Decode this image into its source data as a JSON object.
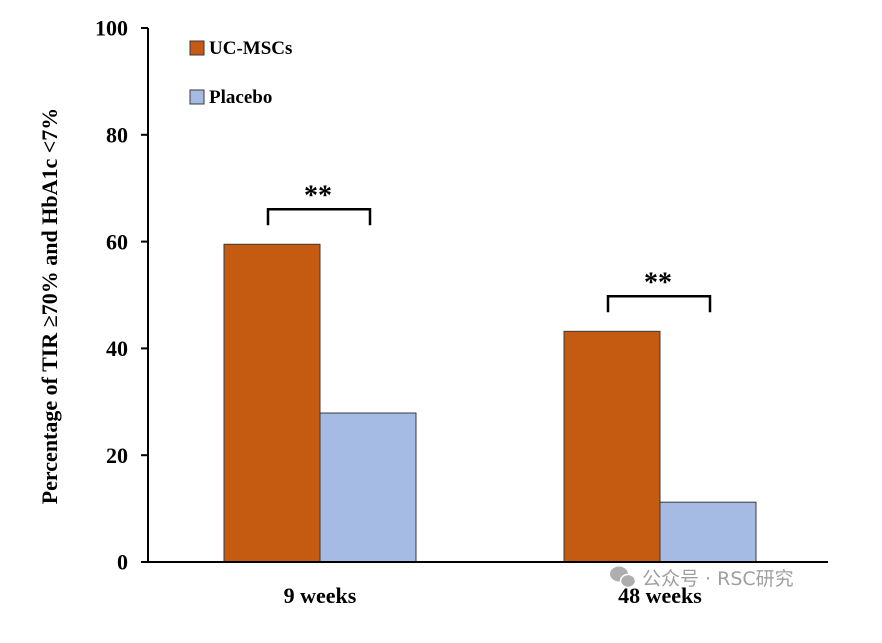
{
  "chart_data": {
    "type": "bar",
    "categories": [
      "9 weeks",
      "48 weeks"
    ],
    "series": [
      {
        "name": "UC-MSCs",
        "values": [
          59.5,
          43.2
        ],
        "color": "#C55A11"
      },
      {
        "name": "Placebo",
        "values": [
          27.9,
          11.2
        ],
        "color": "#A6BBE4"
      }
    ],
    "xlabel": "",
    "ylabel": "Percentage of TIR ≥70% and HbA1c <7%",
    "ylim": [
      0,
      100
    ],
    "yticks": [
      0,
      20,
      40,
      60,
      80,
      100
    ],
    "grid": false,
    "legend": "top-left",
    "annotations": [
      {
        "category": "9 weeks",
        "text": "**"
      },
      {
        "category": "48 weeks",
        "text": "**"
      }
    ]
  },
  "watermark": {
    "icon": "wechat-icon",
    "text": "公众号 · RSC研究"
  }
}
